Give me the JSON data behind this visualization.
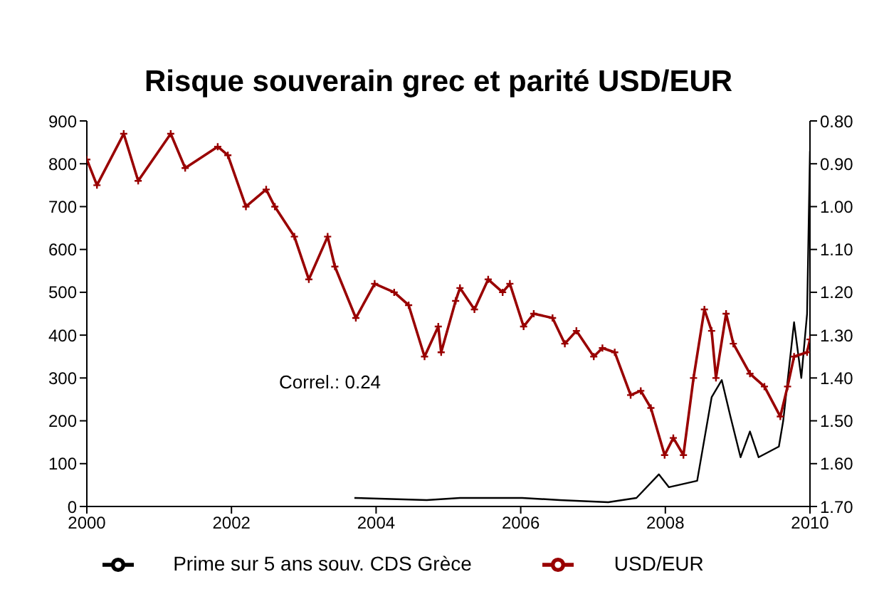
{
  "chart_data": {
    "type": "line",
    "title": "Risque souverain grec et parité USD/EUR",
    "xlim": [
      2000,
      2010
    ],
    "xticks": [
      2000,
      2002,
      2004,
      2006,
      2008,
      2010
    ],
    "ylim": [
      0,
      900
    ],
    "yticks": [
      0,
      100,
      200,
      300,
      400,
      500,
      600,
      700,
      800,
      900
    ],
    "y2lim": [
      1.7,
      0.8
    ],
    "y2ticks": [
      {
        "value": 0.8,
        "label": "0.80"
      },
      {
        "value": 0.9,
        "label": "0.90"
      },
      {
        "value": 1.0,
        "label": "1.00"
      },
      {
        "value": 1.1,
        "label": "1.10"
      },
      {
        "value": 1.2,
        "label": "1.20"
      },
      {
        "value": 1.3,
        "label": "1.30"
      },
      {
        "value": 1.4,
        "label": "1.40"
      },
      {
        "value": 1.5,
        "label": "1.50"
      },
      {
        "value": 1.6,
        "label": "1.60"
      },
      {
        "value": 1.7,
        "label": "1.70"
      }
    ],
    "legend": "bottom",
    "line_style": "solid",
    "annotations": [
      "Correl.: 0.24"
    ],
    "series": [
      {
        "name": "Prime sur 5 ans souv. CDS Grèce",
        "color": "#000000",
        "marker": "none",
        "x": [
          2003.7,
          2004.7,
          2005.16,
          2006.02,
          2006.54,
          2007.21,
          2007.6,
          2007.91,
          2008.05,
          2008.44,
          2008.64,
          2008.78,
          2008.9,
          2009.04,
          2009.17,
          2009.29,
          2009.57,
          2009.63,
          2009.78,
          2009.88,
          2009.96,
          2009.98,
          2010.0
        ],
        "values": [
          20,
          15,
          20,
          20,
          15,
          10,
          20,
          75,
          45,
          60,
          255,
          295,
          210,
          115,
          175,
          115,
          140,
          200,
          430,
          300,
          450,
          640,
          830
        ]
      },
      {
        "name": "USD/EUR",
        "color": "#990000",
        "axis": "y2",
        "marker": "cross",
        "x": [
          2000.0,
          2000.14,
          2000.51,
          2000.71,
          2001.16,
          2001.36,
          2001.81,
          2001.95,
          2002.2,
          2002.48,
          2002.6,
          2002.87,
          2003.07,
          2003.33,
          2003.43,
          2003.72,
          2003.98,
          2004.25,
          2004.45,
          2004.67,
          2004.86,
          2004.9,
          2005.1,
          2005.16,
          2005.36,
          2005.55,
          2005.75,
          2005.85,
          2006.04,
          2006.18,
          2006.44,
          2006.61,
          2006.77,
          2007.01,
          2007.13,
          2007.3,
          2007.52,
          2007.66,
          2007.8,
          2007.99,
          2008.11,
          2008.25,
          2008.39,
          2008.54,
          2008.64,
          2008.7,
          2008.84,
          2008.94,
          2009.17,
          2009.37,
          2009.59,
          2009.69,
          2009.78,
          2009.96,
          2010.0
        ],
        "values": [
          0.89,
          0.95,
          0.83,
          0.94,
          0.83,
          0.91,
          0.86,
          0.88,
          1.0,
          0.96,
          1.0,
          1.07,
          1.17,
          1.07,
          1.14,
          1.26,
          1.18,
          1.2,
          1.23,
          1.35,
          1.28,
          1.34,
          1.22,
          1.19,
          1.24,
          1.17,
          1.2,
          1.18,
          1.28,
          1.25,
          1.26,
          1.32,
          1.29,
          1.35,
          1.33,
          1.34,
          1.44,
          1.43,
          1.47,
          1.58,
          1.54,
          1.58,
          1.4,
          1.24,
          1.29,
          1.4,
          1.25,
          1.32,
          1.39,
          1.42,
          1.49,
          1.42,
          1.35,
          1.34,
          1.31
        ]
      }
    ]
  }
}
